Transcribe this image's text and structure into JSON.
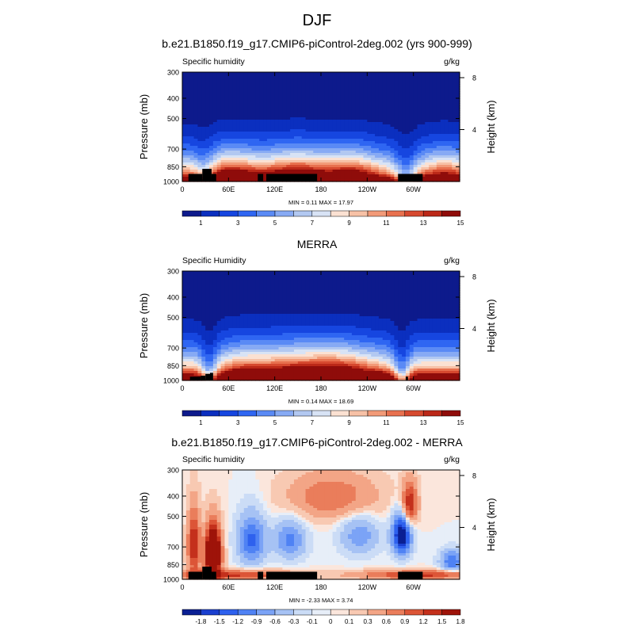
{
  "page_title": "DJF",
  "colormaps": {
    "absolute": [
      "#0d1a8c",
      "#0b2fbf",
      "#1646e0",
      "#2f66f2",
      "#5a8af5",
      "#87aaf4",
      "#b2c8f1",
      "#d8e3f5",
      "#fbe1d2",
      "#f7c1a6",
      "#f29a78",
      "#e8714f",
      "#d6492f",
      "#bb2818",
      "#8f0c0a"
    ],
    "difference": [
      "#0a1f93",
      "#1a3fcf",
      "#2e61ee",
      "#4f82f4",
      "#7ba3f6",
      "#a6c2f4",
      "#cbdcf6",
      "#e7eef8",
      "#fbe6dc",
      "#f8c9b2",
      "#f3a586",
      "#ea7d5b",
      "#dc5537",
      "#c4301c",
      "#9e1309"
    ]
  },
  "chart_data": [
    {
      "type": "heatmap",
      "title": "b.e21.B1850.f19_g17.CMIP6-piControl-2deg.002 (yrs 900-999)",
      "left_label": "Specific humidity",
      "right_label": "g/kg",
      "ylabel": "Pressure (mb)",
      "ylabel_right": "Height (km)",
      "x_ticks": [
        "0",
        "60E",
        "120E",
        "180",
        "120W",
        "60W"
      ],
      "x_tick_values": [
        0,
        60,
        120,
        180,
        240,
        300
      ],
      "xlim": [
        0,
        360
      ],
      "y_ticks": [
        "300",
        "400",
        "500",
        "700",
        "850",
        "1000"
      ],
      "y_tick_values": [
        300,
        400,
        500,
        700,
        850,
        1000
      ],
      "ylim": [
        1000,
        300
      ],
      "y_scale": "log",
      "right_ticks": [
        "8",
        "4"
      ],
      "right_tick_values": [
        8,
        4
      ],
      "stats_text": "MIN =   0.11   MAX =   17.97",
      "min": 0.11,
      "max": 17.97,
      "levels": [
        1,
        2,
        3,
        4,
        5,
        6,
        7,
        8,
        9,
        10,
        11,
        12,
        13,
        14,
        15,
        16
      ],
      "colorbar_labels": [
        "1",
        "3",
        "5",
        "7",
        "9",
        "11",
        "13",
        "15"
      ],
      "colormap": "absolute",
      "field": "model"
    },
    {
      "type": "heatmap",
      "title": "MERRA",
      "left_label": "Specific Humidity",
      "right_label": "g/kg",
      "ylabel": "Pressure (mb)",
      "ylabel_right": "Height (km)",
      "x_ticks": [
        "0",
        "60E",
        "120E",
        "180",
        "120W",
        "60W"
      ],
      "x_tick_values": [
        0,
        60,
        120,
        180,
        240,
        300
      ],
      "xlim": [
        0,
        360
      ],
      "y_ticks": [
        "300",
        "400",
        "500",
        "700",
        "850",
        "1000"
      ],
      "y_tick_values": [
        300,
        400,
        500,
        700,
        850,
        1000
      ],
      "ylim": [
        1000,
        300
      ],
      "y_scale": "log",
      "right_ticks": [
        "8",
        "4"
      ],
      "right_tick_values": [
        8,
        4
      ],
      "stats_text": "MIN =   0.14   MAX =   18.69",
      "min": 0.14,
      "max": 18.69,
      "levels": [
        1,
        2,
        3,
        4,
        5,
        6,
        7,
        8,
        9,
        10,
        11,
        12,
        13,
        14,
        15,
        16
      ],
      "colorbar_labels": [
        "1",
        "3",
        "5",
        "7",
        "9",
        "11",
        "13",
        "15"
      ],
      "colormap": "absolute",
      "field": "obs"
    },
    {
      "type": "heatmap",
      "title": "b.e21.B1850.f19_g17.CMIP6-piControl-2deg.002 - MERRA",
      "left_label": "Specific humidity",
      "right_label": "g/kg",
      "ylabel": "Pressure (mb)",
      "ylabel_right": "Height (km)",
      "x_ticks": [
        "0",
        "60E",
        "120E",
        "180",
        "120W",
        "60W"
      ],
      "x_tick_values": [
        0,
        60,
        120,
        180,
        240,
        300
      ],
      "xlim": [
        0,
        360
      ],
      "y_ticks": [
        "300",
        "400",
        "500",
        "700",
        "850",
        "1000"
      ],
      "y_tick_values": [
        300,
        400,
        500,
        700,
        850,
        1000
      ],
      "ylim": [
        1000,
        300
      ],
      "y_scale": "log",
      "right_ticks": [
        "8",
        "4"
      ],
      "right_tick_values": [
        8,
        4
      ],
      "stats_text": "MIN =  -2.33   MAX =   3.74",
      "min": -2.33,
      "max": 3.74,
      "levels": [
        -1.8,
        -1.5,
        -1.2,
        -0.9,
        -0.6,
        -0.3,
        -0.1,
        0,
        0.1,
        0.3,
        0.6,
        0.9,
        1.2,
        1.5,
        1.8
      ],
      "colorbar_labels": [
        "-1.8",
        "-1.5",
        "-1.2",
        "-0.9",
        "-0.6",
        "-0.3",
        "-0.1",
        "0",
        "0.1",
        "0.3",
        "0.6",
        "0.9",
        "1.2",
        "1.5",
        "1.8"
      ],
      "colormap": "difference",
      "field": "diff"
    }
  ]
}
